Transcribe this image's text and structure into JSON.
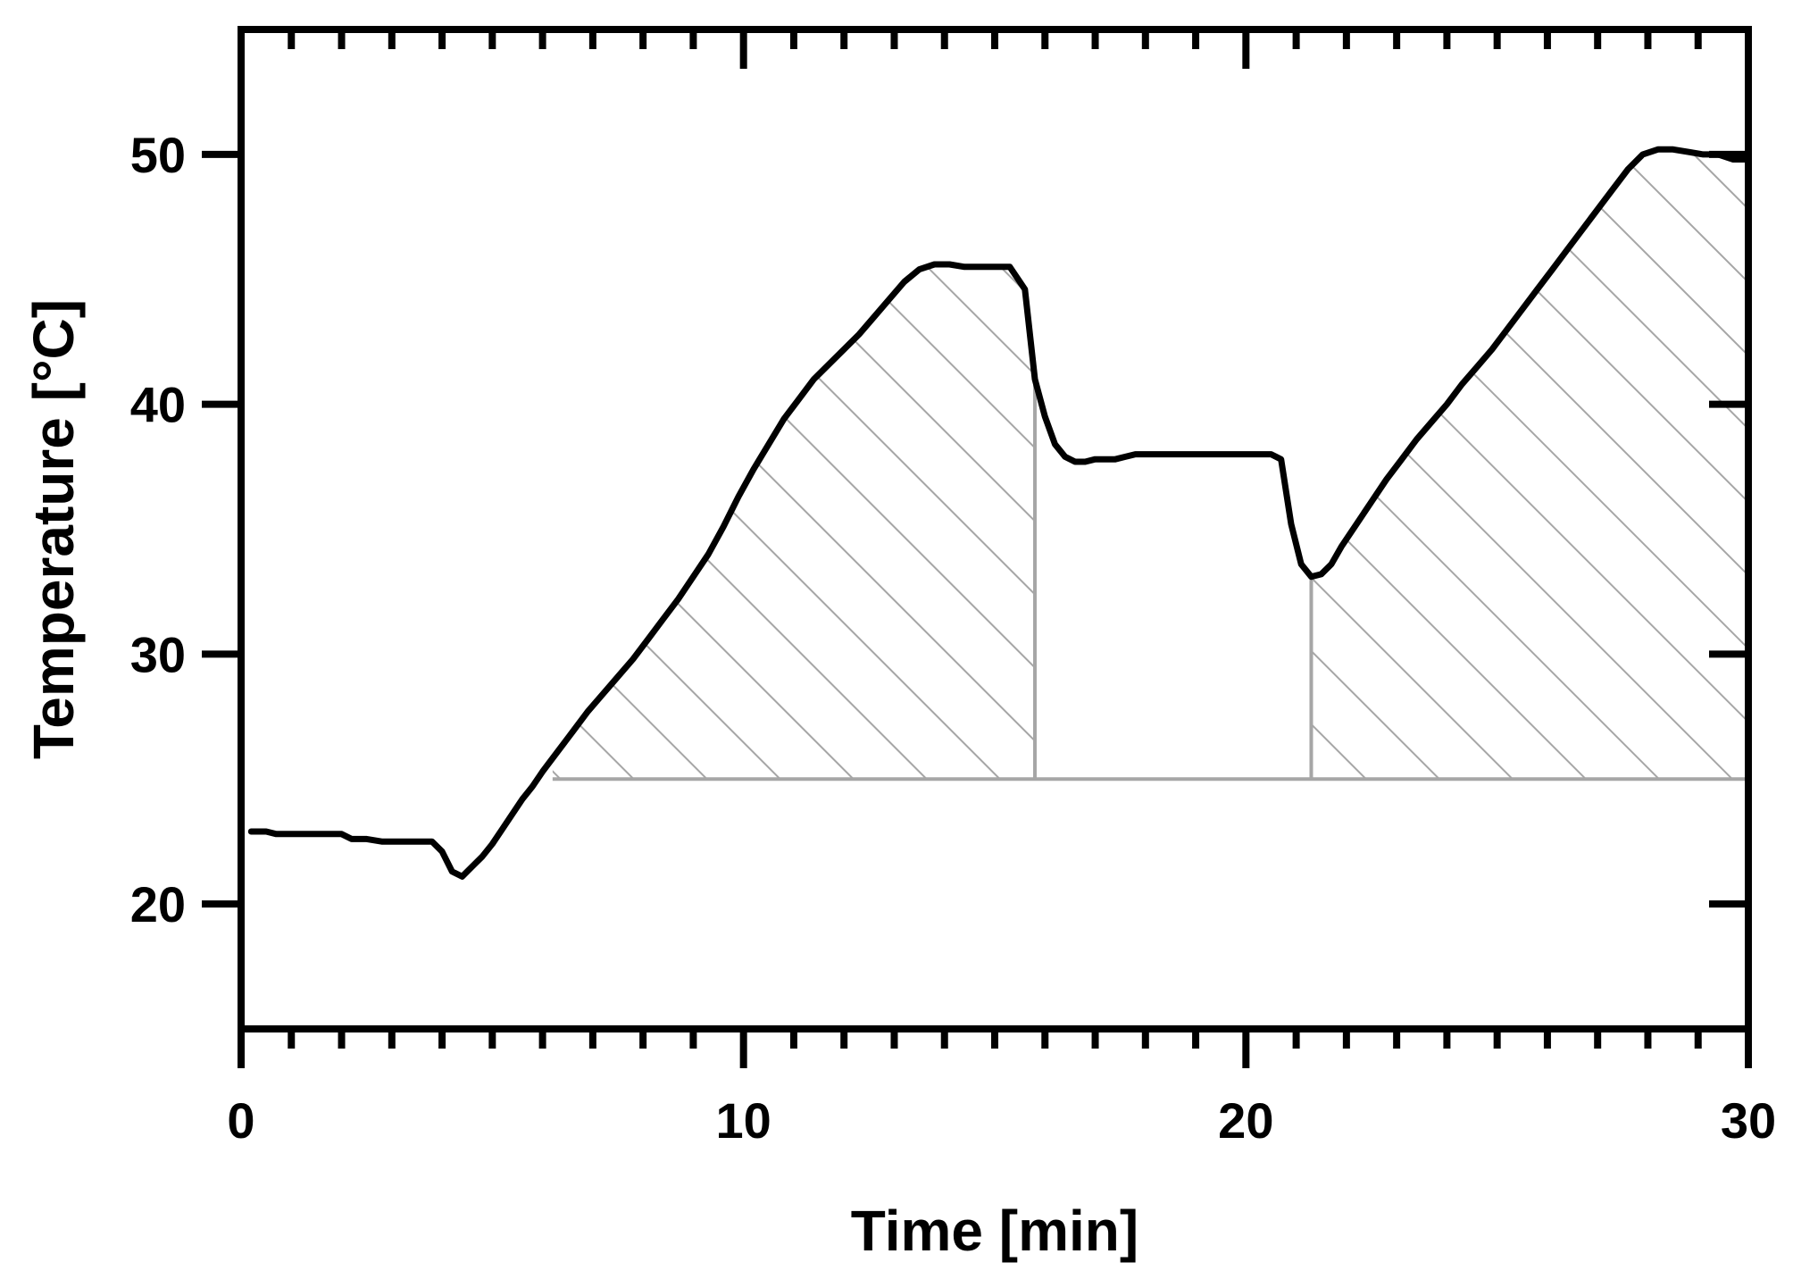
{
  "chart_data": {
    "type": "line",
    "title": "",
    "xlabel": "Time [min]",
    "ylabel": "Temperature [°C]",
    "xlim": [
      0,
      30
    ],
    "ylim": [
      15,
      55
    ],
    "x_ticks": [
      0,
      10,
      20,
      30
    ],
    "x_tick_labels": [
      "0",
      "10",
      "20",
      "30"
    ],
    "y_ticks": [
      20,
      30,
      40,
      50
    ],
    "y_tick_labels": [
      "20",
      "30",
      "40",
      "50"
    ],
    "grid": false,
    "legend": "none",
    "line_color": "#000000",
    "hatch_color": "#a6a6a6",
    "series": [
      {
        "x": [
          0.2,
          0.5,
          0.7,
          1.0,
          1.5,
          2.0,
          2.2,
          2.5,
          2.8,
          3.0,
          3.5,
          3.8,
          4.0,
          4.2,
          4.4,
          4.6,
          4.8,
          5.0,
          5.2,
          5.4,
          5.6,
          5.8,
          6.0,
          6.3,
          6.6,
          6.9,
          7.2,
          7.5,
          7.8,
          8.1,
          8.4,
          8.7,
          9.0,
          9.3,
          9.6,
          9.9,
          10.2,
          10.5,
          10.8,
          11.1,
          11.4,
          11.7,
          12.0,
          12.3,
          12.6,
          12.9,
          13.2,
          13.5,
          13.8,
          14.1,
          14.4,
          14.7,
          15.0,
          15.3,
          15.6,
          15.8,
          16.0,
          16.2,
          16.4,
          16.6,
          16.8,
          17.0,
          17.2,
          17.4,
          17.6,
          17.8,
          18.0,
          18.5,
          19.0,
          19.5,
          20.0,
          20.5,
          20.7,
          20.9,
          21.1,
          21.3,
          21.5,
          21.7,
          21.9,
          22.2,
          22.5,
          22.8,
          23.1,
          23.4,
          23.7,
          24.0,
          24.3,
          24.6,
          24.9,
          25.2,
          25.5,
          25.8,
          26.1,
          26.4,
          26.7,
          27.0,
          27.3,
          27.6,
          27.9,
          28.2,
          28.5,
          28.8,
          29.1,
          29.4,
          29.7,
          30.0
        ],
        "values": [
          22.9,
          22.9,
          22.8,
          22.8,
          22.8,
          22.8,
          22.6,
          22.6,
          22.5,
          22.5,
          22.5,
          22.5,
          22.1,
          21.3,
          21.1,
          21.5,
          21.9,
          22.4,
          23.0,
          23.6,
          24.2,
          24.7,
          25.3,
          26.1,
          26.9,
          27.7,
          28.4,
          29.1,
          29.8,
          30.6,
          31.4,
          32.2,
          33.1,
          34.0,
          35.1,
          36.3,
          37.4,
          38.4,
          39.4,
          40.2,
          41.0,
          41.6,
          42.2,
          42.8,
          43.5,
          44.2,
          44.9,
          45.4,
          45.6,
          45.6,
          45.5,
          45.5,
          45.5,
          45.5,
          44.6,
          41.0,
          39.5,
          38.4,
          37.9,
          37.7,
          37.7,
          37.8,
          37.8,
          37.8,
          37.9,
          38.0,
          38.0,
          38.0,
          38.0,
          38.0,
          38.0,
          38.0,
          37.8,
          35.2,
          33.6,
          33.1,
          33.2,
          33.6,
          34.3,
          35.2,
          36.1,
          37.0,
          37.8,
          38.6,
          39.3,
          40.0,
          40.8,
          41.5,
          42.2,
          43.0,
          43.8,
          44.6,
          45.4,
          46.2,
          47.0,
          47.8,
          48.6,
          49.4,
          50.0,
          50.2,
          50.2,
          50.1,
          50.0,
          50.0,
          49.8,
          49.8
        ]
      }
    ],
    "baseline": 25,
    "shaded_regions": [
      {
        "x_start": 6.2,
        "x_end": 15.8
      },
      {
        "x_start": 21.3,
        "x_end": 30.0
      }
    ]
  }
}
